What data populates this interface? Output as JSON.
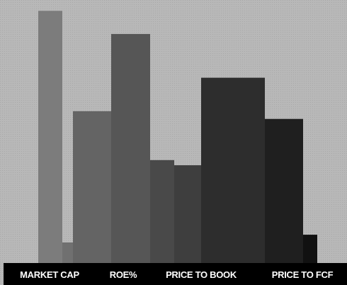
{
  "chart_data": {
    "type": "bar",
    "title": "",
    "xlabel": "",
    "ylabel": "",
    "grid": false,
    "legend": "none",
    "ylim": [
      0,
      100
    ],
    "x_tick_labels": [
      "MARKET CAP",
      "ROE%",
      "PRICE TO BOOK",
      "PRICE TO FCF"
    ],
    "bars": [
      {
        "label": "",
        "value": 98,
        "color": "#7c7c7c"
      },
      {
        "label": "",
        "value": 8,
        "color": "#707070"
      },
      {
        "label": "",
        "value": 59,
        "color": "#646464"
      },
      {
        "label": "",
        "value": 89,
        "color": "#565656"
      },
      {
        "label": "",
        "value": 40,
        "color": "#494949"
      },
      {
        "label": "",
        "value": 38,
        "color": "#3e3e3e"
      },
      {
        "label": "",
        "value": 72,
        "color": "#2d2d2d"
      },
      {
        "label": "",
        "value": 56,
        "color": "#1f1f1f"
      },
      {
        "label": "",
        "value": 11,
        "color": "#111111"
      }
    ],
    "bar_groups": [
      {
        "tick_index": 0,
        "bars": [
          0,
          1
        ]
      },
      {
        "tick_index": 1,
        "bars": [
          2,
          3,
          4
        ]
      },
      {
        "tick_index": 2,
        "bars": [
          5,
          6
        ]
      },
      {
        "tick_index": 3,
        "bars": [
          7,
          8
        ]
      }
    ]
  },
  "colors": {
    "background": "#b8b8b8",
    "axis_band": "#000000",
    "tick_text": "#ffffff"
  }
}
